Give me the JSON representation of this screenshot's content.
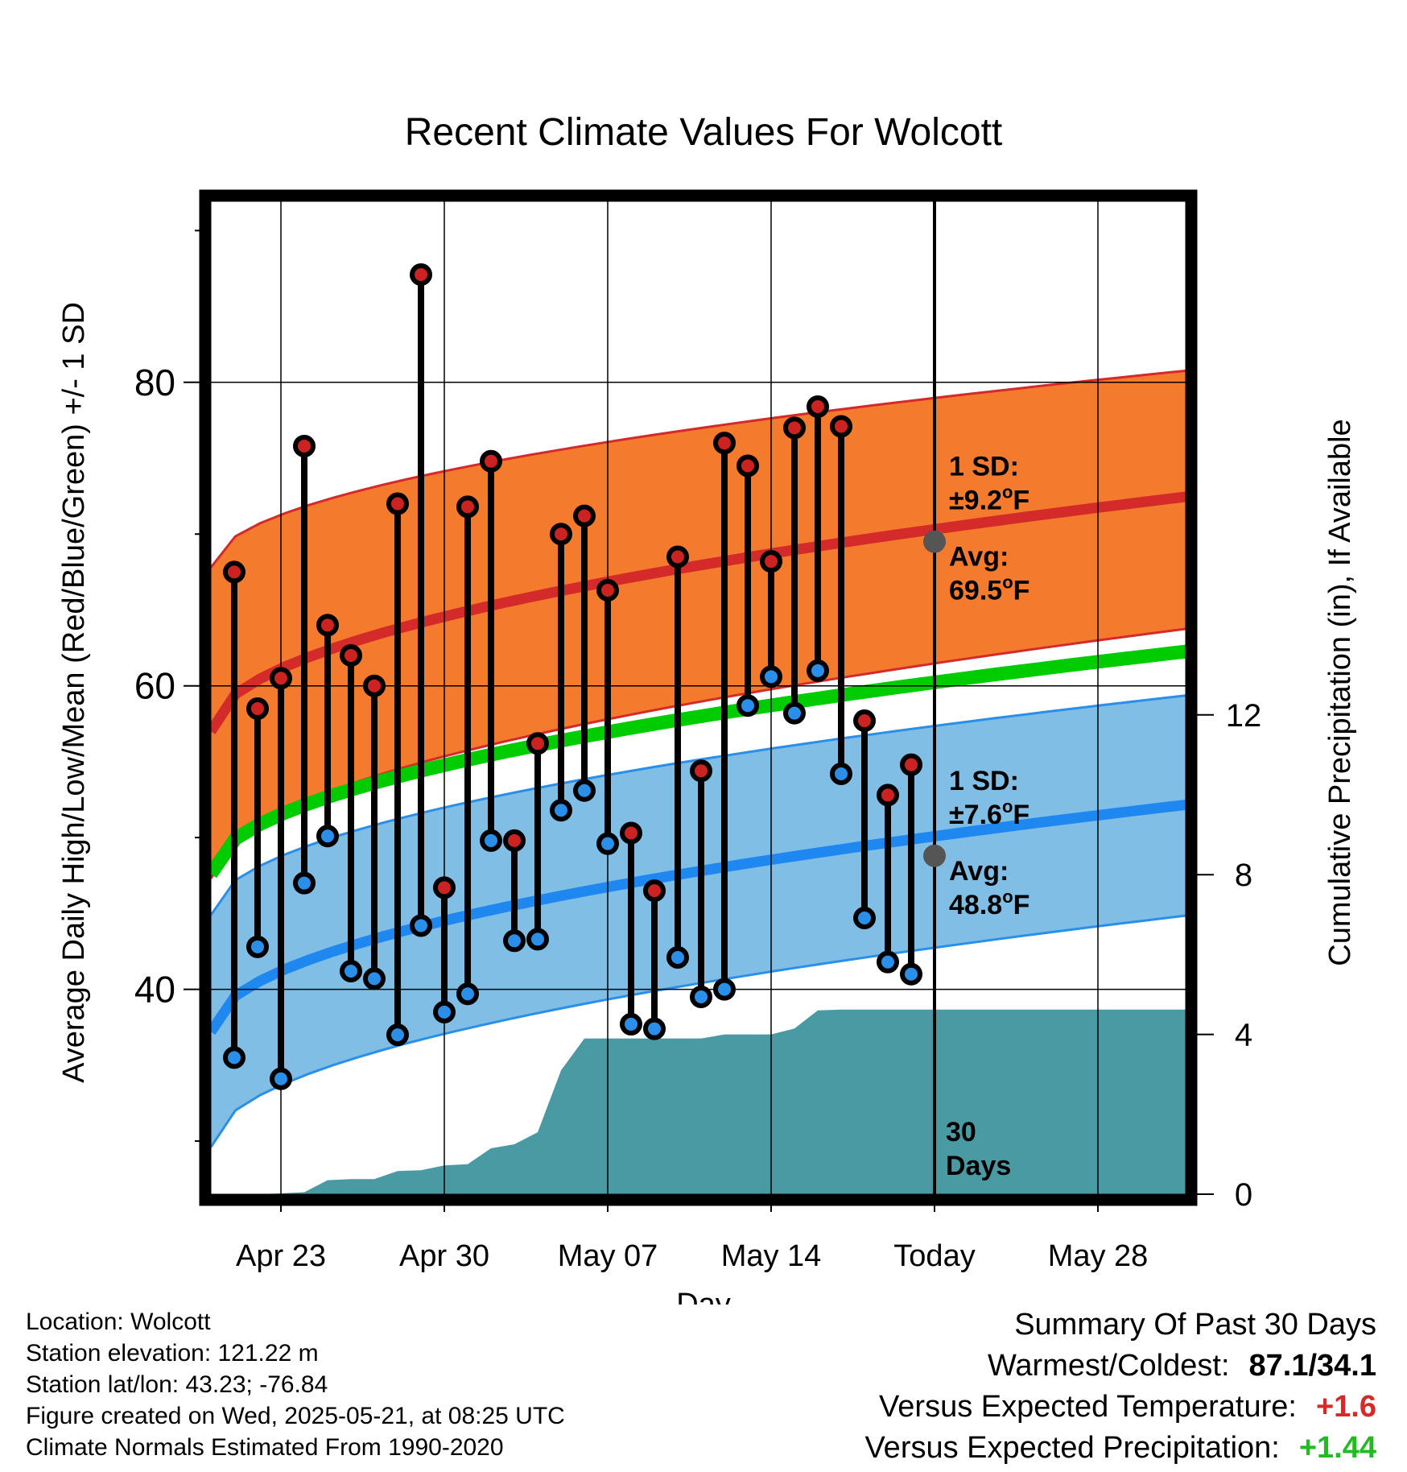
{
  "chart_data": {
    "type": "line",
    "title": "Recent Climate Values For Wolcott",
    "xlabel": "Day",
    "ylabel": "Average Daily High/Low/Mean (Red/Blue/Green) +/- 1 SD",
    "ylabel_right": "Cumulative Precipitation (in), If Available",
    "ylim": [
      26.5,
      92.3
    ],
    "ylim_right": [
      0,
      25
    ],
    "xlim": [
      "2025-04-20",
      "2025-06-01"
    ],
    "x_ticks": [
      {
        "date": "2025-04-23",
        "label": "Apr 23"
      },
      {
        "date": "2025-04-30",
        "label": "Apr 30"
      },
      {
        "date": "2025-05-07",
        "label": "May 07"
      },
      {
        "date": "2025-05-14",
        "label": "May 14"
      },
      {
        "date": "2025-05-21",
        "label": "Today"
      },
      {
        "date": "2025-05-28",
        "label": "May 28"
      }
    ],
    "y_ticks": [
      40,
      60,
      80
    ],
    "y_ticks_right": [
      0,
      4,
      8,
      12
    ],
    "days": [
      "2025-04-21",
      "2025-04-22",
      "2025-04-23",
      "2025-04-24",
      "2025-04-25",
      "2025-04-26",
      "2025-04-27",
      "2025-04-28",
      "2025-04-29",
      "2025-04-30",
      "2025-05-01",
      "2025-05-02",
      "2025-05-03",
      "2025-05-04",
      "2025-05-05",
      "2025-05-06",
      "2025-05-07",
      "2025-05-08",
      "2025-05-09",
      "2025-05-10",
      "2025-05-11",
      "2025-05-12",
      "2025-05-13",
      "2025-05-14",
      "2025-05-15",
      "2025-05-16",
      "2025-05-17",
      "2025-05-18",
      "2025-05-19",
      "2025-05-20"
    ],
    "series": [
      {
        "name": "Daily High",
        "color": "#cc2222",
        "values": [
          67.5,
          58.5,
          60.5,
          75.8,
          64.0,
          62.0,
          60.0,
          72.0,
          87.1,
          46.7,
          71.8,
          74.8,
          49.8,
          56.2,
          70.0,
          71.2,
          66.3,
          50.3,
          46.5,
          68.5,
          54.4,
          76.0,
          74.5,
          68.2,
          77.0,
          78.4,
          77.1,
          57.7,
          52.8,
          54.8
        ]
      },
      {
        "name": "Daily Low",
        "color": "#2a8fe8",
        "values": [
          35.5,
          42.8,
          34.1,
          47.0,
          50.1,
          41.2,
          40.7,
          37.0,
          44.2,
          38.5,
          39.7,
          49.8,
          43.2,
          43.3,
          51.8,
          53.1,
          49.6,
          37.7,
          37.4,
          42.1,
          39.5,
          40.0,
          58.7,
          60.6,
          58.2,
          61.0,
          54.2,
          44.7,
          41.8,
          41.0
        ]
      }
    ],
    "normals": {
      "start": "2025-04-20",
      "end": "2025-06-01",
      "high_avg": [
        57.0,
        72.5
      ],
      "high_sd_upper": [
        67.8,
        80.8
      ],
      "high_sd_lower": [
        47.3,
        63.8
      ],
      "low_avg": [
        37.2,
        52.2
      ],
      "low_sd_upper": [
        44.9,
        59.4
      ],
      "low_sd_lower": [
        29.6,
        44.9
      ],
      "mean_avg": [
        47.6,
        62.3
      ]
    },
    "precipitation": {
      "days": [
        "2025-04-20",
        "2025-04-21",
        "2025-04-22",
        "2025-04-23",
        "2025-04-24",
        "2025-04-25",
        "2025-04-26",
        "2025-04-27",
        "2025-04-28",
        "2025-04-29",
        "2025-04-30",
        "2025-05-01",
        "2025-05-02",
        "2025-05-03",
        "2025-05-04",
        "2025-05-05",
        "2025-05-06",
        "2025-05-07",
        "2025-05-08",
        "2025-05-09",
        "2025-05-10",
        "2025-05-11",
        "2025-05-12",
        "2025-05-13",
        "2025-05-14",
        "2025-05-15",
        "2025-05-16",
        "2025-05-17",
        "2025-05-18",
        "2025-05-19",
        "2025-05-20",
        "2025-05-21",
        "2025-06-01"
      ],
      "values": [
        0,
        0,
        0,
        0.02,
        0.05,
        0.35,
        0.38,
        0.38,
        0.58,
        0.6,
        0.72,
        0.75,
        1.15,
        1.25,
        1.55,
        3.1,
        3.9,
        3.9,
        3.9,
        3.9,
        3.9,
        3.9,
        4.0,
        4.0,
        4.0,
        4.15,
        4.6,
        4.62,
        4.62,
        4.62,
        4.62,
        4.62,
        4.62
      ]
    },
    "annotations": {
      "high": {
        "sd_label": "1 SD:",
        "sd_value": "±9.2",
        "avg_label": "Avg:",
        "avg_value": "69.5",
        "unit": "F",
        "avg": 69.5
      },
      "low": {
        "sd_label": "1 SD:",
        "sd_value": "±7.6",
        "avg_label": "Avg:",
        "avg_value": "48.8",
        "unit": "F",
        "avg": 48.8
      },
      "today": "2025-05-21",
      "days_label_1": "30",
      "days_label_2": "Days"
    },
    "colors": {
      "high_band": "#f47a2e",
      "high_line": "#d42a2a",
      "low_band": "#80bee6",
      "low_line": "#1e88f0",
      "low_band_edge": "#2a8fe8",
      "mean_line": "#00cc00",
      "precip": "#4a9aa3",
      "stem": "#000000",
      "today_marker": "#555555",
      "annotation_text": "#555555"
    }
  },
  "info": {
    "location": "Location: Wolcott",
    "elevation": "Station elevation: 121.22 m",
    "latlon": "Station lat/lon: 43.23; -76.84",
    "created": "Figure created on Wed, 2025-05-21, at 08:25 UTC",
    "normals": "Climate Normals Estimated From 1990-2020"
  },
  "summary": {
    "title": "Summary Of Past 30 Days",
    "warmest_label": "Warmest/Coldest:",
    "warmest_value": "87.1/34.1",
    "temp_label": "Versus Expected Temperature:",
    "temp_value": "+1.6",
    "temp_color": "#d42a2a",
    "precip_label": "Versus Expected Precipitation:",
    "precip_value": "+1.44",
    "precip_color": "#22bb22"
  }
}
